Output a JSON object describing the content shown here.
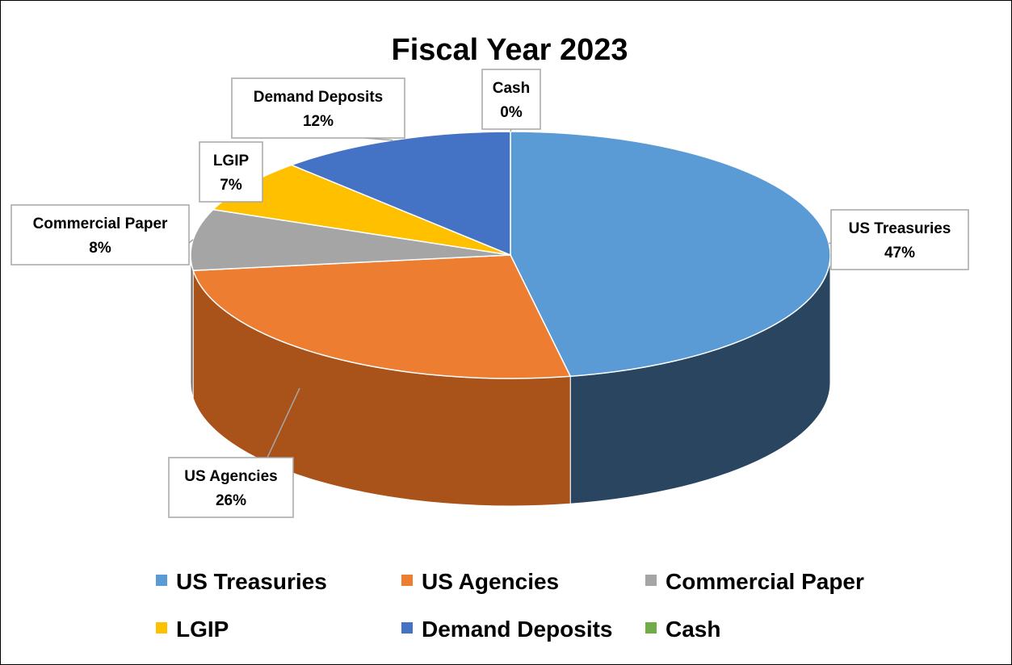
{
  "chart_data": {
    "type": "pie",
    "title": "Fiscal Year 2023",
    "series": [
      {
        "name": "US Treasuries",
        "value": 47,
        "label": "47%",
        "color": "#5B9BD5",
        "side_color": "#2A4560"
      },
      {
        "name": "US Agencies",
        "value": 26,
        "label": "26%",
        "color": "#ED7D31",
        "side_color": "#A9531B"
      },
      {
        "name": "Commercial Paper",
        "value": 8,
        "label": "8%",
        "color": "#A5A5A5",
        "side_color": "#6E6E6E"
      },
      {
        "name": "LGIP",
        "value": 7,
        "label": "7%",
        "color": "#FFC000",
        "side_color": "#B38600"
      },
      {
        "name": "Demand Deposits",
        "value": 12,
        "label": "12%",
        "color": "#4472C4",
        "side_color": "#2B4A80"
      },
      {
        "name": "Cash",
        "value": 0,
        "label": "0%",
        "color": "#70AD47",
        "side_color": "#4A7530"
      }
    ],
    "legend": {
      "position": "bottom"
    },
    "three_d": true
  }
}
